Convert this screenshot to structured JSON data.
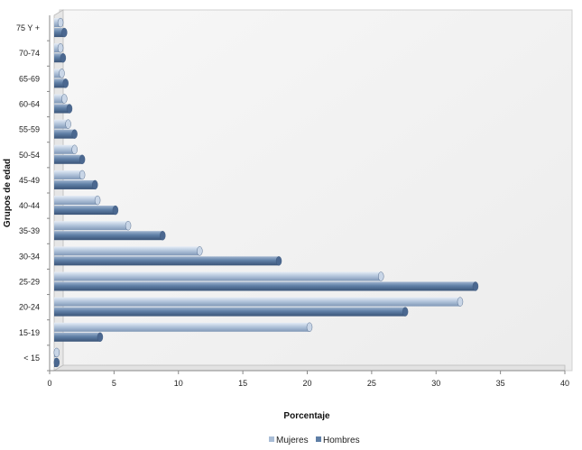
{
  "chart_data": {
    "type": "bar",
    "orientation": "horizontal",
    "title": "",
    "xlabel": "Porcentaje",
    "ylabel": "Grupos de edad",
    "categories": [
      "< 15",
      "15-19",
      "20-24",
      "25-29",
      "30-34",
      "35-39",
      "40-44",
      "45-49",
      "50-54",
      "55-59",
      "60-64",
      "65-69",
      "70-74",
      "75 Y +"
    ],
    "series": [
      {
        "name": "Mujeres",
        "color": "#a9bdd6",
        "values": [
          0.2,
          20.0,
          31.8,
          25.6,
          11.4,
          5.8,
          3.4,
          2.2,
          1.6,
          1.1,
          0.8,
          0.6,
          0.5,
          0.5
        ]
      },
      {
        "name": "Hombres",
        "color": "#5f7fa6",
        "values": [
          0.2,
          3.6,
          27.5,
          33.0,
          17.6,
          8.5,
          4.8,
          3.2,
          2.2,
          1.6,
          1.2,
          0.9,
          0.7,
          0.8
        ]
      }
    ],
    "xlim": [
      0,
      40
    ],
    "xticks": [
      0,
      5,
      10,
      15,
      20,
      25,
      30,
      35,
      40
    ],
    "grid": false,
    "legend": "bottom"
  }
}
